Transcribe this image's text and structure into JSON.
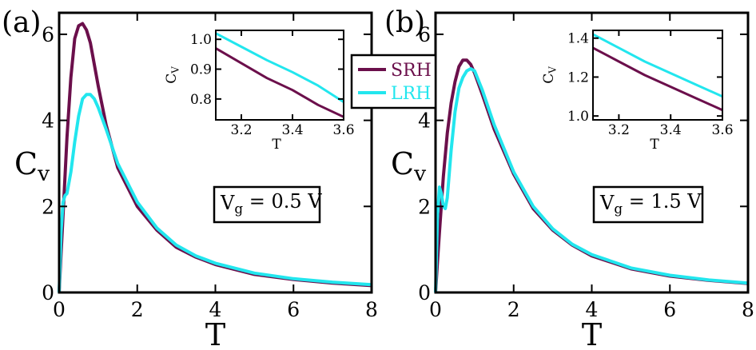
{
  "legend": [
    {
      "label": "SRH",
      "color": "#6b0f4b"
    },
    {
      "label": "LRH",
      "color": "#22e6ee"
    }
  ],
  "chart_data": [
    {
      "type": "line",
      "panel_label": "(a)",
      "annotation": {
        "main": "V",
        "sub": "g",
        "rest": "= 0.5 V"
      },
      "xlabel": "T",
      "ylabel": {
        "main": "C",
        "sub": "v"
      },
      "xlim": [
        0,
        8
      ],
      "ylim": [
        0,
        6.5
      ],
      "xticks": [
        "0",
        "2",
        "4",
        "6",
        "8"
      ],
      "yticks": [
        "0",
        "2",
        "4",
        "6"
      ],
      "series": [
        {
          "name": "SRH",
          "color": "#6b0f4b",
          "x": [
            0.0,
            0.05,
            0.1,
            0.2,
            0.3,
            0.4,
            0.5,
            0.6,
            0.7,
            0.8,
            1.0,
            1.2,
            1.5,
            2.0,
            2.5,
            3.0,
            3.5,
            4.0,
            5.0,
            6.0,
            7.0,
            8.0
          ],
          "y": [
            0.0,
            0.9,
            1.8,
            3.6,
            5.0,
            5.9,
            6.2,
            6.25,
            6.1,
            5.8,
            4.8,
            3.9,
            2.9,
            2.0,
            1.45,
            1.05,
            0.82,
            0.65,
            0.42,
            0.3,
            0.22,
            0.16
          ]
        },
        {
          "name": "LRH",
          "color": "#22e6ee",
          "x": [
            0.0,
            0.05,
            0.1,
            0.15,
            0.2,
            0.3,
            0.4,
            0.5,
            0.6,
            0.7,
            0.8,
            0.9,
            1.0,
            1.2,
            1.5,
            2.0,
            2.5,
            3.0,
            3.5,
            4.0,
            5.0,
            6.0,
            7.0,
            8.0
          ],
          "y": [
            0.0,
            1.4,
            2.1,
            2.25,
            2.3,
            2.8,
            3.5,
            4.1,
            4.5,
            4.6,
            4.6,
            4.5,
            4.3,
            3.8,
            3.0,
            2.1,
            1.5,
            1.1,
            0.85,
            0.68,
            0.45,
            0.32,
            0.24,
            0.18
          ]
        }
      ],
      "inset": {
        "xlabel": "T",
        "ylabel": {
          "main": "C",
          "sub": "V"
        },
        "xlim": [
          3.1,
          3.6
        ],
        "ylim": [
          0.73,
          1.03
        ],
        "xticks": [
          "3.2",
          "3.4",
          "3.6"
        ],
        "yticks": [
          "0.8",
          "0.9",
          "1.0"
        ],
        "series": [
          {
            "name": "SRH",
            "color": "#6b0f4b",
            "x": [
              3.1,
              3.2,
              3.3,
              3.4,
              3.5,
              3.6
            ],
            "y": [
              0.97,
              0.92,
              0.87,
              0.83,
              0.78,
              0.74
            ]
          },
          {
            "name": "LRH",
            "color": "#22e6ee",
            "x": [
              3.1,
              3.2,
              3.3,
              3.4,
              3.5,
              3.6
            ],
            "y": [
              1.02,
              0.975,
              0.93,
              0.89,
              0.845,
              0.79
            ]
          }
        ]
      }
    },
    {
      "type": "line",
      "panel_label": "(b)",
      "annotation": {
        "main": "V",
        "sub": "g",
        "rest": "= 1.5 V"
      },
      "xlabel": "T",
      "ylabel": {
        "main": "C",
        "sub": "v"
      },
      "xlim": [
        0,
        8
      ],
      "ylim": [
        0,
        6.5
      ],
      "xticks": [
        "0",
        "2",
        "4",
        "6",
        "8"
      ],
      "yticks": [
        "0",
        "2",
        "4",
        "6"
      ],
      "series": [
        {
          "name": "SRH",
          "color": "#6b0f4b",
          "x": [
            0.0,
            0.05,
            0.1,
            0.2,
            0.3,
            0.4,
            0.5,
            0.6,
            0.7,
            0.8,
            0.9,
            1.0,
            1.2,
            1.5,
            2.0,
            2.5,
            3.0,
            3.5,
            4.0,
            5.0,
            6.0,
            7.0,
            8.0
          ],
          "y": [
            0.0,
            0.7,
            1.4,
            2.7,
            3.7,
            4.4,
            4.9,
            5.25,
            5.4,
            5.4,
            5.3,
            5.1,
            4.6,
            3.8,
            2.75,
            1.95,
            1.45,
            1.1,
            0.85,
            0.55,
            0.38,
            0.28,
            0.21
          ]
        },
        {
          "name": "LRH",
          "color": "#22e6ee",
          "x": [
            0.0,
            0.05,
            0.1,
            0.15,
            0.2,
            0.25,
            0.3,
            0.4,
            0.5,
            0.6,
            0.7,
            0.8,
            0.9,
            1.0,
            1.2,
            1.5,
            2.0,
            2.5,
            3.0,
            3.5,
            4.0,
            5.0,
            6.0,
            7.0,
            8.0
          ],
          "y": [
            0.0,
            1.8,
            2.45,
            2.3,
            2.0,
            1.95,
            2.2,
            3.3,
            4.2,
            4.75,
            5.0,
            5.15,
            5.2,
            5.15,
            4.7,
            3.9,
            2.8,
            2.0,
            1.48,
            1.12,
            0.88,
            0.57,
            0.4,
            0.29,
            0.22
          ]
        }
      ],
      "inset": {
        "xlabel": "T",
        "ylabel": {
          "main": "C",
          "sub": "V"
        },
        "xlim": [
          3.1,
          3.6
        ],
        "ylim": [
          0.98,
          1.44
        ],
        "xticks": [
          "3.2",
          "3.4",
          "3.6"
        ],
        "yticks": [
          "1.0",
          "1.2",
          "1.4"
        ],
        "series": [
          {
            "name": "SRH",
            "color": "#6b0f4b",
            "x": [
              3.1,
              3.2,
              3.3,
              3.4,
              3.5,
              3.6
            ],
            "y": [
              1.35,
              1.28,
              1.21,
              1.15,
              1.09,
              1.03
            ]
          },
          {
            "name": "LRH",
            "color": "#22e6ee",
            "x": [
              3.1,
              3.2,
              3.3,
              3.4,
              3.5,
              3.6
            ],
            "y": [
              1.42,
              1.35,
              1.28,
              1.22,
              1.16,
              1.1
            ]
          }
        ]
      }
    }
  ]
}
